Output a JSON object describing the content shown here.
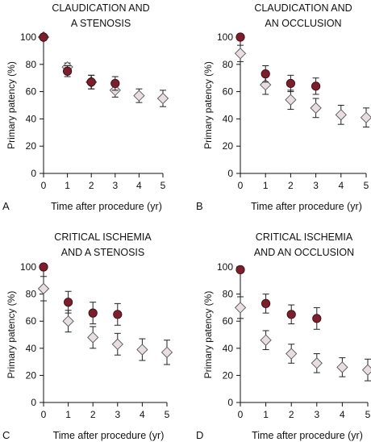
{
  "chart_data": [
    {
      "type": "scatter",
      "panel_letter": "A",
      "title_lines": [
        "CLAUDICATION AND",
        "A STENOSIS"
      ],
      "xlabel": "Time after procedure (yr)",
      "ylabel": "Primary patency (%)",
      "x_ticks": [
        0,
        1,
        2,
        3,
        4,
        5
      ],
      "y_ticks": [
        0,
        20,
        40,
        60,
        80,
        100
      ],
      "xlim": [
        0,
        5
      ],
      "ylim": [
        0,
        100
      ],
      "grid": false,
      "series": [
        {
          "marker": "circle",
          "color": "#7a1f2b",
          "points": [
            {
              "x": 0,
              "y": 100,
              "err": 0
            },
            {
              "x": 1,
              "y": 75,
              "err": 4
            },
            {
              "x": 2,
              "y": 67,
              "err": 5
            },
            {
              "x": 3,
              "y": 66,
              "err": 5
            }
          ]
        },
        {
          "marker": "diamond",
          "color": "#e8dde3",
          "points": [
            {
              "x": 0,
              "y": 100,
              "err": 0
            },
            {
              "x": 1,
              "y": 78,
              "err": 3
            },
            {
              "x": 2,
              "y": 67,
              "err": 5
            },
            {
              "x": 3,
              "y": 61,
              "err": 5
            },
            {
              "x": 4,
              "y": 57,
              "err": 5
            },
            {
              "x": 5,
              "y": 55,
              "err": 6
            }
          ]
        }
      ]
    },
    {
      "type": "scatter",
      "panel_letter": "B",
      "title_lines": [
        "CLAUDICATION AND",
        "AN OCCLUSION"
      ],
      "xlabel": "Time after procedure (yr)",
      "ylabel": "Primary patency (%)",
      "x_ticks": [
        0,
        1,
        2,
        3,
        4,
        5
      ],
      "y_ticks": [
        0,
        20,
        40,
        60,
        80,
        100
      ],
      "xlim": [
        0,
        5
      ],
      "ylim": [
        0,
        100
      ],
      "grid": false,
      "series": [
        {
          "marker": "circle",
          "color": "#7a1f2b",
          "points": [
            {
              "x": 0,
              "y": 100,
              "err": 0
            },
            {
              "x": 1,
              "y": 73,
              "err": 6
            },
            {
              "x": 2,
              "y": 66,
              "err": 6
            },
            {
              "x": 3,
              "y": 64,
              "err": 6
            }
          ]
        },
        {
          "marker": "diamond",
          "color": "#e8dde3",
          "points": [
            {
              "x": 0,
              "y": 88,
              "err": 6
            },
            {
              "x": 1,
              "y": 65,
              "err": 7
            },
            {
              "x": 2,
              "y": 54,
              "err": 7
            },
            {
              "x": 3,
              "y": 48,
              "err": 7
            },
            {
              "x": 4,
              "y": 43,
              "err": 7
            },
            {
              "x": 5,
              "y": 41,
              "err": 7
            }
          ]
        }
      ]
    },
    {
      "type": "scatter",
      "panel_letter": "C",
      "title_lines": [
        "CRITICAL ISCHEMIA",
        "AND A STENOSIS"
      ],
      "xlabel": "Time after procedure (yr)",
      "ylabel": "Primary patency (%)",
      "x_ticks": [
        0,
        1,
        2,
        3,
        4,
        5
      ],
      "y_ticks": [
        0,
        20,
        40,
        60,
        80,
        100
      ],
      "xlim": [
        0,
        5
      ],
      "ylim": [
        0,
        100
      ],
      "grid": false,
      "series": [
        {
          "marker": "circle",
          "color": "#7a1f2b",
          "points": [
            {
              "x": 0,
              "y": 100,
              "err": 0
            },
            {
              "x": 1,
              "y": 74,
              "err": 8
            },
            {
              "x": 2,
              "y": 66,
              "err": 8
            },
            {
              "x": 3,
              "y": 65,
              "err": 8
            }
          ]
        },
        {
          "marker": "diamond",
          "color": "#e8dde3",
          "points": [
            {
              "x": 0,
              "y": 84,
              "err": 9
            },
            {
              "x": 1,
              "y": 60,
              "err": 8
            },
            {
              "x": 2,
              "y": 48,
              "err": 8
            },
            {
              "x": 3,
              "y": 43,
              "err": 8
            },
            {
              "x": 4,
              "y": 39,
              "err": 8
            },
            {
              "x": 5,
              "y": 37,
              "err": 9
            }
          ]
        }
      ]
    },
    {
      "type": "scatter",
      "panel_letter": "D",
      "title_lines": [
        "CRITICAL ISCHEMIA",
        "AND AN OCCLUSION"
      ],
      "xlabel": "Time after procedure (yr)",
      "ylabel": "Primary patency (%)",
      "x_ticks": [
        0,
        1,
        2,
        3,
        4,
        5
      ],
      "y_ticks": [
        0,
        20,
        40,
        60,
        80,
        100
      ],
      "xlim": [
        0,
        5
      ],
      "ylim": [
        0,
        100
      ],
      "grid": false,
      "series": [
        {
          "marker": "circle",
          "color": "#7a1f2b",
          "points": [
            {
              "x": 0,
              "y": 98,
              "err": 0
            },
            {
              "x": 1,
              "y": 73,
              "err": 7
            },
            {
              "x": 2,
              "y": 65,
              "err": 7
            },
            {
              "x": 3,
              "y": 62,
              "err": 8
            }
          ]
        },
        {
          "marker": "diamond",
          "color": "#e8dde3",
          "points": [
            {
              "x": 0,
              "y": 70,
              "err": 8
            },
            {
              "x": 1,
              "y": 46,
              "err": 7
            },
            {
              "x": 2,
              "y": 36,
              "err": 7
            },
            {
              "x": 3,
              "y": 29,
              "err": 7
            },
            {
              "x": 4,
              "y": 26,
              "err": 7
            },
            {
              "x": 5,
              "y": 24,
              "err": 8
            }
          ]
        }
      ]
    }
  ]
}
